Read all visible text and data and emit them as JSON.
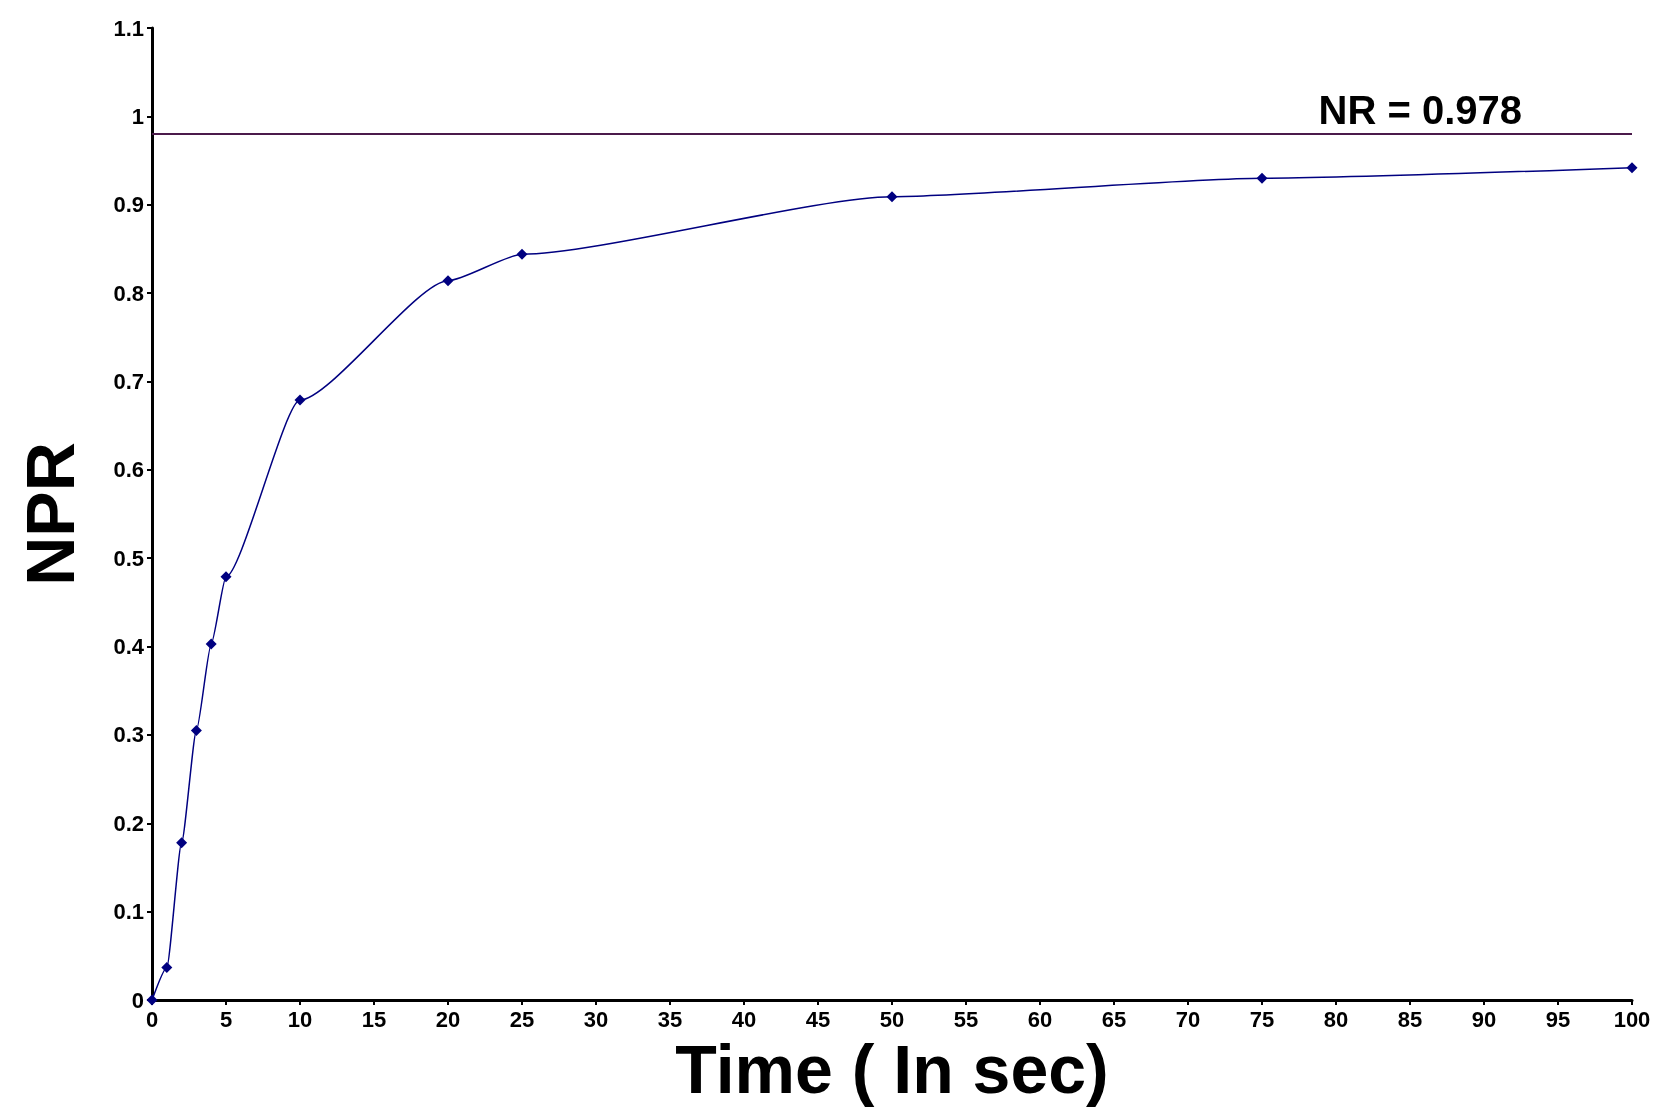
{
  "chart_data": {
    "type": "line",
    "xlabel": "Time ( In sec)",
    "ylabel": "NPR",
    "x": [
      0,
      1,
      2,
      3,
      4,
      5,
      10,
      20,
      25,
      50,
      75,
      100
    ],
    "series": [
      {
        "color": "#000080",
        "values": [
          0,
          0.037,
          0.178,
          0.305,
          0.403,
          0.479,
          0.679,
          0.814,
          0.844,
          0.909,
          0.93,
          0.942
        ]
      }
    ],
    "xlim": [
      0,
      100
    ],
    "xticks": [
      0,
      5,
      10,
      15,
      20,
      25,
      30,
      35,
      40,
      45,
      50,
      55,
      60,
      65,
      70,
      75,
      80,
      85,
      90,
      95,
      100
    ],
    "ylim": [
      0,
      1.1
    ],
    "yticks": [
      0,
      0.1,
      0.2,
      0.3,
      0.4,
      0.5,
      0.6,
      0.7,
      0.8,
      0.9,
      1,
      1.1
    ],
    "ref_lines": [
      {
        "axis": "y",
        "value": 0.978,
        "label": "NR = 0.978",
        "color": "#4b1a4b"
      }
    ],
    "marker": "diamond",
    "line_style": "solid",
    "grid": false
  }
}
